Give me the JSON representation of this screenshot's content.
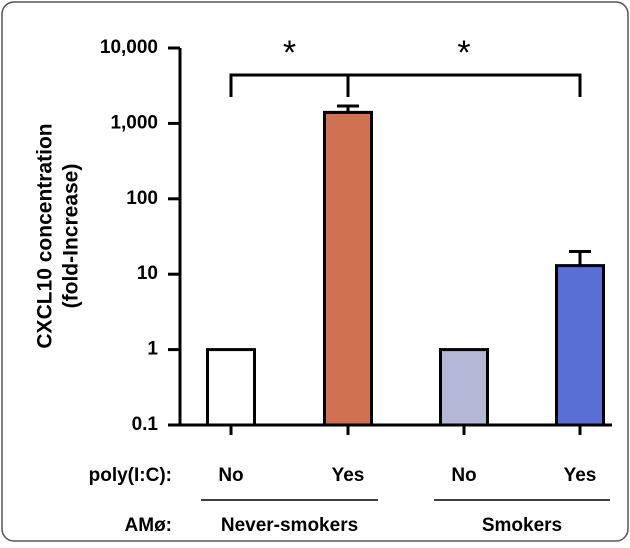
{
  "chart_data": {
    "type": "bar",
    "yscale": "log",
    "y_label_lines": [
      "CXCL10 concentration",
      "(fold-Increase)"
    ],
    "x_row_label": "poly(I:C):",
    "group_row_label": "AMø:",
    "categories": [
      "No",
      "Yes",
      "No",
      "Yes"
    ],
    "groups": [
      {
        "label": "Never-smokers",
        "members": [
          0,
          1
        ]
      },
      {
        "label": "Smokers",
        "members": [
          2,
          3
        ]
      }
    ],
    "values": [
      1,
      1400,
      1,
      13
    ],
    "errors": [
      0,
      300,
      0,
      7
    ],
    "colors": [
      "#ffffff",
      "#d07152",
      "#b4b8d6",
      "#5a6fd6"
    ],
    "ylim": [
      0.1,
      10000
    ],
    "yticks": [
      0.1,
      1,
      10,
      100,
      {
        "value": 1000,
        "label": "1,000"
      },
      {
        "value": 10000,
        "label": "10,000"
      }
    ],
    "significance": [
      {
        "from": 0,
        "to": 1,
        "label": "*"
      },
      {
        "from": 1,
        "to": 3,
        "label": "*"
      }
    ]
  }
}
